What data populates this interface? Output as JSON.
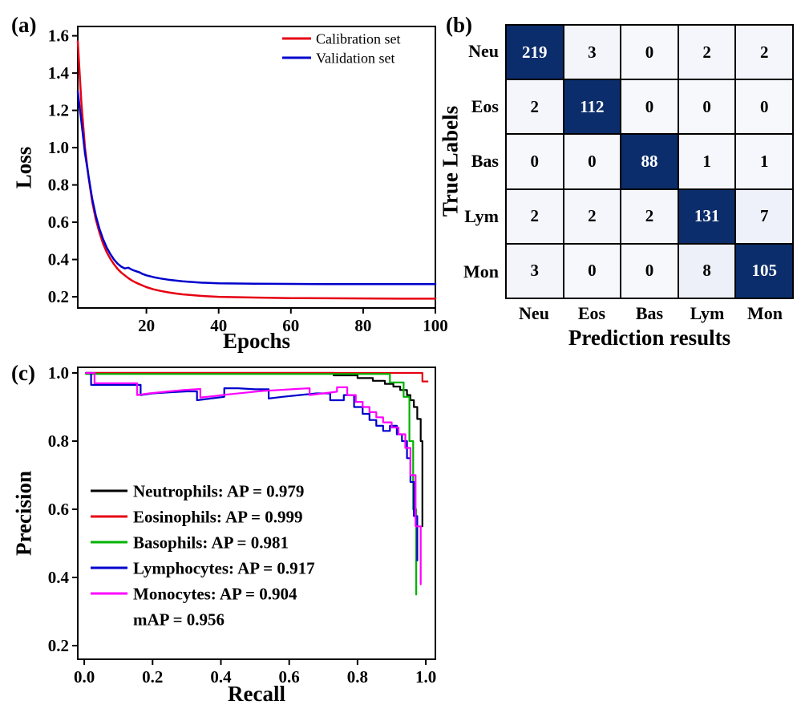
{
  "chart_data": [
    {
      "id": "loss_curves",
      "panel_label": "(a)",
      "type": "line",
      "title": "",
      "xlabel": "Epochs",
      "ylabel": "Loss",
      "xlim": [
        1,
        100
      ],
      "ylim": [
        0.14,
        1.65
      ],
      "xticks": [
        "20",
        "40",
        "60",
        "80",
        "100"
      ],
      "yticks": [
        "0.2",
        "0.4",
        "0.6",
        "0.8",
        "1.0",
        "1.2",
        "1.4",
        "1.6"
      ],
      "grid": false,
      "legend_position": "top-right",
      "legend": [
        {
          "label": "Calibration set",
          "color": "#e60012"
        },
        {
          "label": "Validation set",
          "color": "#0000cd"
        }
      ],
      "series": [
        {
          "name": "Calibration set",
          "color": "#e60012",
          "x": [
            1,
            2,
            3,
            4,
            5,
            6,
            7,
            8,
            9,
            10,
            11,
            12,
            13,
            14,
            15,
            16,
            17,
            18,
            19,
            20,
            22,
            24,
            26,
            28,
            30,
            35,
            40,
            50,
            60,
            70,
            80,
            90,
            100
          ],
          "y": [
            1.57,
            1.24,
            1.0,
            0.84,
            0.71,
            0.615,
            0.545,
            0.485,
            0.44,
            0.405,
            0.375,
            0.35,
            0.33,
            0.315,
            0.3,
            0.287,
            0.277,
            0.268,
            0.26,
            0.252,
            0.24,
            0.231,
            0.224,
            0.218,
            0.213,
            0.205,
            0.2,
            0.196,
            0.193,
            0.192,
            0.191,
            0.19,
            0.19
          ]
        },
        {
          "name": "Validation set",
          "color": "#0000cd",
          "x": [
            1,
            2,
            3,
            4,
            5,
            6,
            7,
            8,
            9,
            10,
            11,
            12,
            13,
            14,
            15,
            16,
            17,
            18,
            19,
            20,
            22,
            24,
            26,
            28,
            30,
            35,
            40,
            50,
            60,
            70,
            80,
            90,
            100
          ],
          "y": [
            1.3,
            1.14,
            0.97,
            0.845,
            0.725,
            0.635,
            0.565,
            0.51,
            0.465,
            0.43,
            0.4,
            0.378,
            0.362,
            0.352,
            0.356,
            0.345,
            0.338,
            0.332,
            0.322,
            0.315,
            0.305,
            0.298,
            0.292,
            0.287,
            0.283,
            0.276,
            0.272,
            0.27,
            0.269,
            0.268,
            0.268,
            0.268,
            0.268
          ]
        }
      ]
    },
    {
      "id": "confusion_matrix",
      "panel_label": "(b)",
      "type": "heatmap",
      "title": "",
      "xlabel": "Prediction results",
      "ylabel": "True Labels",
      "row_labels": [
        "Neu",
        "Eos",
        "Bas",
        "Lym",
        "Mon"
      ],
      "col_labels": [
        "Neu",
        "Eos",
        "Bas",
        "Lym",
        "Mon"
      ],
      "values": [
        [
          219,
          3,
          0,
          2,
          2
        ],
        [
          2,
          112,
          0,
          0,
          0
        ],
        [
          0,
          0,
          88,
          1,
          1
        ],
        [
          2,
          2,
          2,
          131,
          7
        ],
        [
          3,
          0,
          0,
          8,
          105
        ]
      ],
      "colors": {
        "high": "#0b2d6b",
        "low": "#f7f8fc",
        "low_tint": "#dee4f3",
        "text_on_high": "#ffffff",
        "text_on_low": "#000000"
      }
    },
    {
      "id": "precision_recall_curves",
      "panel_label": "(c)",
      "type": "line",
      "title": "",
      "xlabel": "Recall",
      "ylabel": "Precision",
      "xlim": [
        -0.019,
        1.028
      ],
      "ylim": [
        0.16,
        1.0165
      ],
      "xticks": [
        "0.0",
        "0.2",
        "0.4",
        "0.6",
        "0.8",
        "1.0"
      ],
      "yticks": [
        "0.2",
        "0.4",
        "0.6",
        "0.8",
        "1.0"
      ],
      "grid": false,
      "legend_position": "bottom-left",
      "legend": [
        {
          "label": "Neutrophils: AP = 0.979",
          "color": "#000000"
        },
        {
          "label": "Eosinophils: AP = 0.999",
          "color": "#e60012"
        },
        {
          "label": "Basophils: AP = 0.981",
          "color": "#00b300"
        },
        {
          "label": "Lymphocytes: AP = 0.917",
          "color": "#0000cd"
        },
        {
          "label": "Monocytes: AP = 0.904",
          "color": "#ff00ff"
        },
        {
          "label": "mAP = 0.956",
          "color": null
        }
      ],
      "series": [
        {
          "name": "Neutrophils",
          "color": "#000000",
          "x": [
            0.005,
            0.73,
            0.73,
            0.8,
            0.8,
            0.845,
            0.845,
            0.88,
            0.88,
            0.905,
            0.905,
            0.925,
            0.925,
            0.945,
            0.945,
            0.955,
            0.955,
            0.965,
            0.965,
            0.975,
            0.975,
            0.985,
            0.985,
            0.99,
            0.99
          ],
          "y": [
            1.0,
            1.0,
            0.993,
            0.993,
            0.985,
            0.985,
            0.977,
            0.977,
            0.968,
            0.968,
            0.96,
            0.96,
            0.95,
            0.95,
            0.935,
            0.935,
            0.92,
            0.92,
            0.9,
            0.9,
            0.865,
            0.865,
            0.8,
            0.8,
            0.55
          ]
        },
        {
          "name": "Eosinophils",
          "color": "#e60012",
          "x": [
            0.005,
            0.99,
            0.99,
            1.005
          ],
          "y": [
            1.0,
            1.0,
            0.975,
            0.975
          ]
        },
        {
          "name": "Basophils",
          "color": "#00b300",
          "x": [
            0.005,
            0.895,
            0.895,
            0.935,
            0.935,
            0.952,
            0.952,
            0.963,
            0.963,
            0.972,
            0.972
          ],
          "y": [
            0.997,
            0.997,
            0.972,
            0.972,
            0.93,
            0.93,
            0.8,
            0.8,
            0.6,
            0.6,
            0.35
          ]
        },
        {
          "name": "Lymphocytes",
          "color": "#0000cd",
          "x": [
            0.005,
            0.02,
            0.02,
            0.165,
            0.165,
            0.2,
            0.25,
            0.3,
            0.33,
            0.33,
            0.37,
            0.41,
            0.41,
            0.45,
            0.5,
            0.54,
            0.54,
            0.58,
            0.63,
            0.68,
            0.72,
            0.72,
            0.76,
            0.76,
            0.79,
            0.79,
            0.815,
            0.815,
            0.835,
            0.835,
            0.855,
            0.855,
            0.875,
            0.875,
            0.895,
            0.895,
            0.915,
            0.915,
            0.93,
            0.93,
            0.945,
            0.945,
            0.955,
            0.955,
            0.965,
            0.965,
            0.975,
            0.975
          ],
          "y": [
            1.0,
            1.0,
            0.965,
            0.965,
            0.935,
            0.94,
            0.943,
            0.946,
            0.946,
            0.92,
            0.925,
            0.93,
            0.955,
            0.955,
            0.952,
            0.952,
            0.925,
            0.93,
            0.935,
            0.94,
            0.94,
            0.92,
            0.92,
            0.935,
            0.935,
            0.9,
            0.9,
            0.88,
            0.88,
            0.862,
            0.862,
            0.845,
            0.845,
            0.83,
            0.83,
            0.845,
            0.845,
            0.82,
            0.82,
            0.8,
            0.8,
            0.75,
            0.75,
            0.68,
            0.68,
            0.58,
            0.58,
            0.45
          ]
        },
        {
          "name": "Monocytes",
          "color": "#ff00ff",
          "x": [
            0.005,
            0.03,
            0.03,
            0.155,
            0.155,
            0.19,
            0.24,
            0.29,
            0.34,
            0.34,
            0.38,
            0.42,
            0.47,
            0.52,
            0.57,
            0.62,
            0.66,
            0.66,
            0.7,
            0.74,
            0.74,
            0.77,
            0.77,
            0.795,
            0.795,
            0.815,
            0.815,
            0.835,
            0.835,
            0.855,
            0.855,
            0.875,
            0.875,
            0.9,
            0.9,
            0.92,
            0.92,
            0.94,
            0.94,
            0.955,
            0.955,
            0.97,
            0.97,
            0.985,
            0.985
          ],
          "y": [
            1.0,
            1.0,
            0.97,
            0.97,
            0.935,
            0.94,
            0.945,
            0.95,
            0.953,
            0.928,
            0.932,
            0.937,
            0.942,
            0.947,
            0.95,
            0.953,
            0.955,
            0.935,
            0.94,
            0.945,
            0.958,
            0.958,
            0.935,
            0.935,
            0.915,
            0.915,
            0.9,
            0.9,
            0.885,
            0.885,
            0.87,
            0.87,
            0.855,
            0.855,
            0.84,
            0.84,
            0.82,
            0.82,
            0.78,
            0.78,
            0.7,
            0.7,
            0.55,
            0.55,
            0.38
          ]
        }
      ]
    }
  ]
}
